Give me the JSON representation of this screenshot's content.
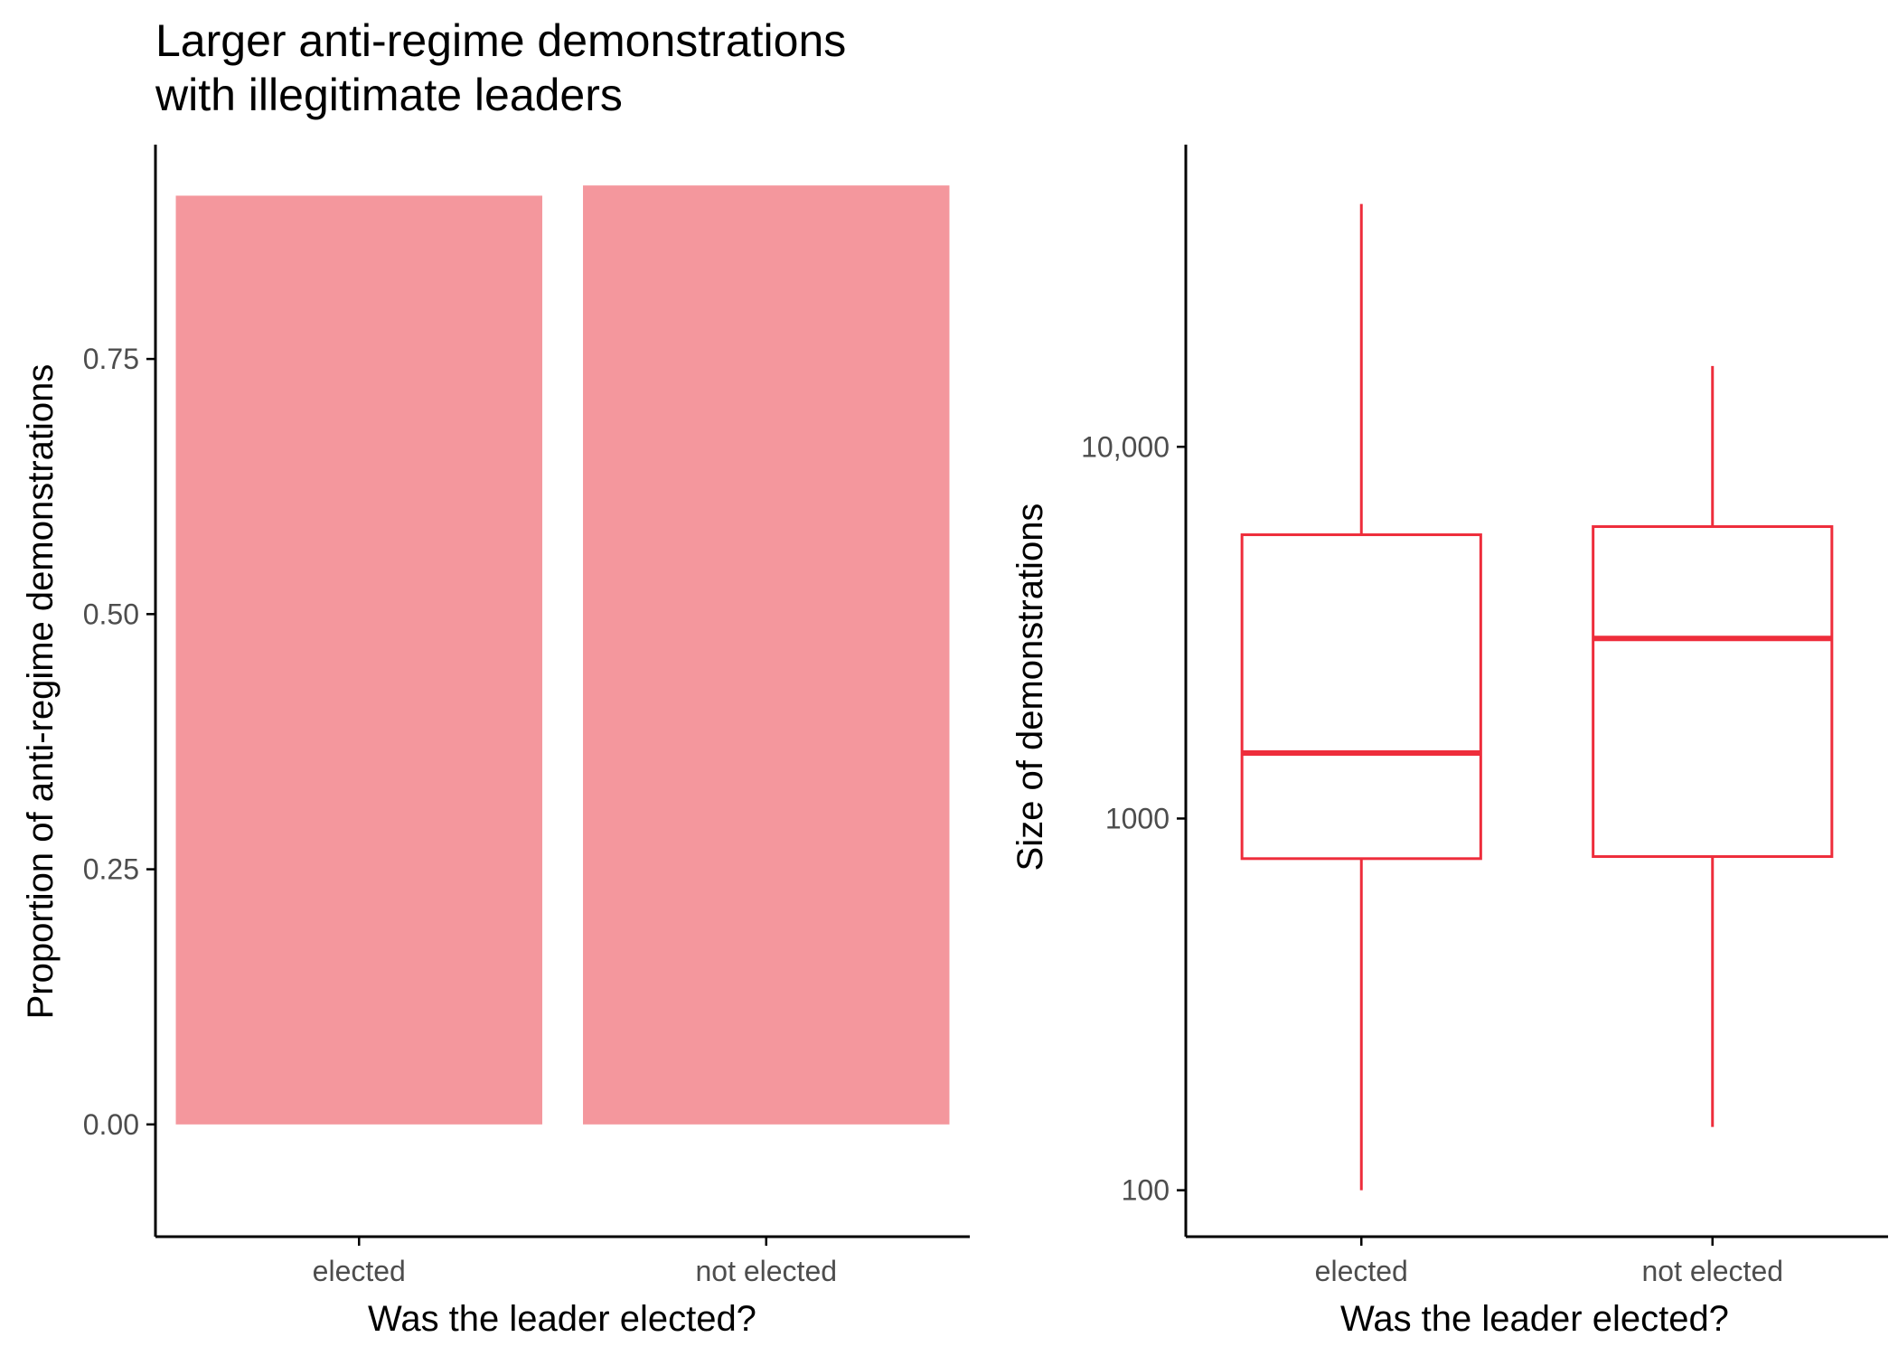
{
  "title_lines": [
    "Larger anti-regime demonstrations",
    "with illegitimate leaders"
  ],
  "colors": {
    "bar_fill": "#f4979d",
    "box_stroke": "#ee2d3b",
    "axis": "#000000",
    "tick_text": "#4d4d4d"
  },
  "chart_data": [
    {
      "type": "bar",
      "categories": [
        "elected",
        "not elected"
      ],
      "values": [
        0.91,
        0.92
      ],
      "xlabel": "Was the leader elected?",
      "ylabel": "Proportion of anti-regime demonstrations",
      "ylim": [
        -0.11,
        0.96
      ],
      "yticks": [
        0,
        0.25,
        0.5,
        0.75
      ],
      "ytick_labels": [
        "0.00",
        "0.25",
        "0.50",
        "0.75"
      ],
      "grid": false
    },
    {
      "type": "box",
      "categories": [
        "elected",
        "not elected"
      ],
      "boxes": [
        {
          "min": 100,
          "q1": 780,
          "median": 1500,
          "q3": 5800,
          "max": 45000
        },
        {
          "min": 148,
          "q1": 790,
          "median": 3050,
          "q3": 6100,
          "max": 16500
        }
      ],
      "xlabel": "Was the leader elected?",
      "ylabel": "Size of demonstrations",
      "yscale": "log",
      "ylim": [
        75,
        65000
      ],
      "yticks": [
        100,
        1000,
        10000
      ],
      "ytick_labels": [
        "100",
        "1000",
        "10,000"
      ],
      "grid": false
    }
  ]
}
